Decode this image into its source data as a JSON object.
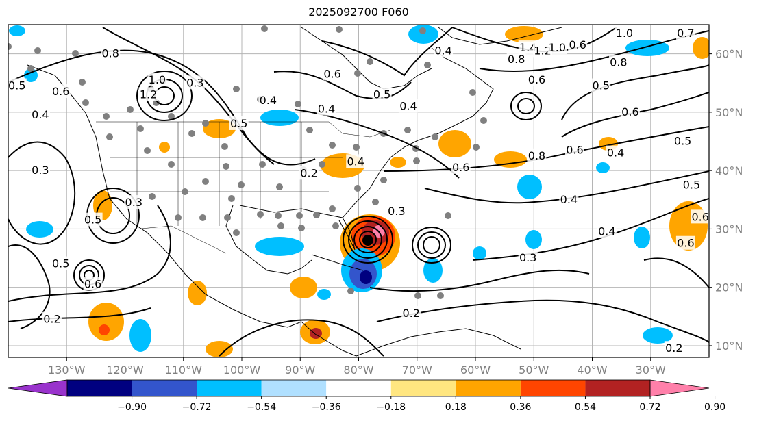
{
  "title": "2025092700 F060",
  "map": {
    "lon_range": [
      -140,
      -20
    ],
    "lat_range": [
      8,
      65
    ],
    "lon_ticks": [
      {
        "value": -130,
        "label": "130°W"
      },
      {
        "value": -120,
        "label": "120°W"
      },
      {
        "value": -110,
        "label": "110°W"
      },
      {
        "value": -100,
        "label": "100°W"
      },
      {
        "value": -90,
        "label": "90°W"
      },
      {
        "value": -80,
        "label": "80°W"
      },
      {
        "value": -70,
        "label": "70°W"
      },
      {
        "value": -60,
        "label": "60°W"
      },
      {
        "value": -50,
        "label": "50°W"
      },
      {
        "value": -40,
        "label": "40°W"
      },
      {
        "value": -30,
        "label": "30°W"
      }
    ],
    "lat_ticks": [
      {
        "value": 10,
        "label": "10°N"
      },
      {
        "value": 20,
        "label": "20°N"
      },
      {
        "value": 30,
        "label": "30°N"
      },
      {
        "value": 40,
        "label": "40°N"
      },
      {
        "value": 50,
        "label": "50°N"
      },
      {
        "value": 60,
        "label": "60°N"
      }
    ],
    "contour_labels": [
      {
        "lon": -138.5,
        "lat": 54.5,
        "text": "0.5"
      },
      {
        "lon": -134.5,
        "lat": 49.5,
        "text": "0.4"
      },
      {
        "lon": -131.0,
        "lat": 53.5,
        "text": "0.6"
      },
      {
        "lon": -122.5,
        "lat": 60.0,
        "text": "0.8"
      },
      {
        "lon": -114.5,
        "lat": 55.5,
        "text": "1.0"
      },
      {
        "lon": -116.0,
        "lat": 53.0,
        "text": "1.2"
      },
      {
        "lon": -108.0,
        "lat": 55.0,
        "text": "0.3"
      },
      {
        "lon": -95.5,
        "lat": 52.0,
        "text": "0.4"
      },
      {
        "lon": -100.5,
        "lat": 48.0,
        "text": "0.5"
      },
      {
        "lon": -88.5,
        "lat": 39.5,
        "text": "0.2"
      },
      {
        "lon": -80.5,
        "lat": 41.5,
        "text": "0.4"
      },
      {
        "lon": -134.5,
        "lat": 40.0,
        "text": "0.3"
      },
      {
        "lon": -118.5,
        "lat": 34.5,
        "text": "0.3"
      },
      {
        "lon": -125.5,
        "lat": 31.5,
        "text": "0.5"
      },
      {
        "lon": -131.0,
        "lat": 24.0,
        "text": "0.5"
      },
      {
        "lon": -125.5,
        "lat": 20.5,
        "text": "0.6"
      },
      {
        "lon": -132.5,
        "lat": 14.5,
        "text": "0.2"
      },
      {
        "lon": -84.5,
        "lat": 56.5,
        "text": "0.6"
      },
      {
        "lon": -85.5,
        "lat": 50.5,
        "text": "0.4"
      },
      {
        "lon": -76.0,
        "lat": 53.0,
        "text": "0.5"
      },
      {
        "lon": -65.5,
        "lat": 60.5,
        "text": "0.4"
      },
      {
        "lon": -51.0,
        "lat": 61.0,
        "text": "1.4"
      },
      {
        "lon": -48.5,
        "lat": 60.5,
        "text": "1.2"
      },
      {
        "lon": -46.0,
        "lat": 61.0,
        "text": "1.0"
      },
      {
        "lon": -42.5,
        "lat": 61.5,
        "text": "0.6"
      },
      {
        "lon": -53.0,
        "lat": 59.0,
        "text": "0.8"
      },
      {
        "lon": -49.5,
        "lat": 55.5,
        "text": "0.6"
      },
      {
        "lon": -34.5,
        "lat": 63.5,
        "text": "1.0"
      },
      {
        "lon": -24.0,
        "lat": 63.5,
        "text": "0.7"
      },
      {
        "lon": -35.5,
        "lat": 58.5,
        "text": "0.8"
      },
      {
        "lon": -38.5,
        "lat": 54.5,
        "text": "0.5"
      },
      {
        "lon": -33.5,
        "lat": 50.0,
        "text": "0.6"
      },
      {
        "lon": -24.5,
        "lat": 45.0,
        "text": "0.5"
      },
      {
        "lon": -49.5,
        "lat": 42.5,
        "text": "0.8"
      },
      {
        "lon": -43.0,
        "lat": 43.5,
        "text": "0.6"
      },
      {
        "lon": -36.0,
        "lat": 43.0,
        "text": "0.4"
      },
      {
        "lon": -62.5,
        "lat": 40.5,
        "text": "0.6"
      },
      {
        "lon": -71.5,
        "lat": 51.0,
        "text": "0.4"
      },
      {
        "lon": -73.5,
        "lat": 33.0,
        "text": "0.3"
      },
      {
        "lon": -44.0,
        "lat": 35.0,
        "text": "0.4"
      },
      {
        "lon": -37.5,
        "lat": 29.5,
        "text": "0.4"
      },
      {
        "lon": -23.0,
        "lat": 37.5,
        "text": "0.5"
      },
      {
        "lon": -21.5,
        "lat": 32.0,
        "text": "0.6"
      },
      {
        "lon": -24.0,
        "lat": 27.5,
        "text": "0.6"
      },
      {
        "lon": -51.0,
        "lat": 25.0,
        "text": "0.3"
      },
      {
        "lon": -71.0,
        "lat": 15.5,
        "text": "0.2"
      },
      {
        "lon": -26.0,
        "lat": 9.5,
        "text": "0.2"
      }
    ]
  },
  "colorbar": {
    "colors": [
      "#9933cc",
      "#000080",
      "#3355cc",
      "#00bfff",
      "#b0e0ff",
      "#ffffff",
      "#ffe680",
      "#ffa500",
      "#ff4500",
      "#b22222",
      "#ff80aa"
    ],
    "tick_labels": [
      "−0.90",
      "−0.72",
      "−0.54",
      "−0.36",
      "−0.18",
      "0.18",
      "0.36",
      "0.54",
      "0.72",
      "0.90"
    ]
  }
}
